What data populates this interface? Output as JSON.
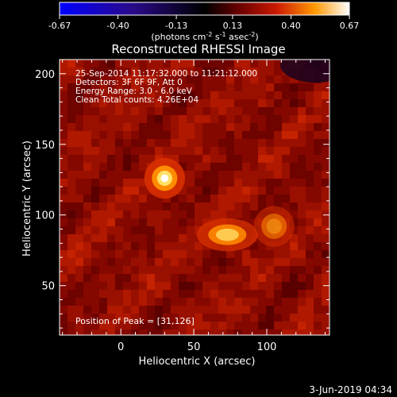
{
  "colorbar": {
    "tick_labels": [
      "-0.67",
      "-0.40",
      "-0.13",
      "0.13",
      "0.40",
      "0.67"
    ],
    "ticks": [
      -0.67,
      -0.4,
      -0.13,
      0.13,
      0.4,
      0.67
    ],
    "range": [
      -0.67,
      0.67
    ],
    "unit_prefix": "(photons cm",
    "unit_sup1": "-2",
    "unit_mid": " s",
    "unit_sup2": "-1",
    "unit_mid2": " asec",
    "unit_sup3": "-2",
    "unit_suffix": ")"
  },
  "chart_data": {
    "type": "heatmap",
    "title": "Reconstructed RHESSI Image",
    "xlabel": "Heliocentric X (arcsec)",
    "ylabel": "Heliocentric Y (arcsec)",
    "xlim": [
      -42,
      143
    ],
    "ylim": [
      15,
      210
    ],
    "xticks": [
      0,
      50,
      100
    ],
    "yticks": [
      50,
      100,
      150,
      200
    ],
    "sources": [
      {
        "x": 30,
        "y": 126,
        "peak": 0.67
      },
      {
        "x": 73,
        "y": 86,
        "peak": 0.52
      },
      {
        "x": 105,
        "y": 92,
        "peak": 0.3
      }
    ],
    "annotations": [
      "25-Sep-2014 11:17:32.000 to 11:21:12.000",
      "Detectors: 3F 6F 9F, Att 0",
      "Energy Range: 3.0 - 6.0 keV",
      "Clean    Total counts: 4.26E+04"
    ],
    "peak_label": "Position of Peak = [31,126]"
  },
  "footer": {
    "date": "3-Jun-2019 04:34"
  }
}
